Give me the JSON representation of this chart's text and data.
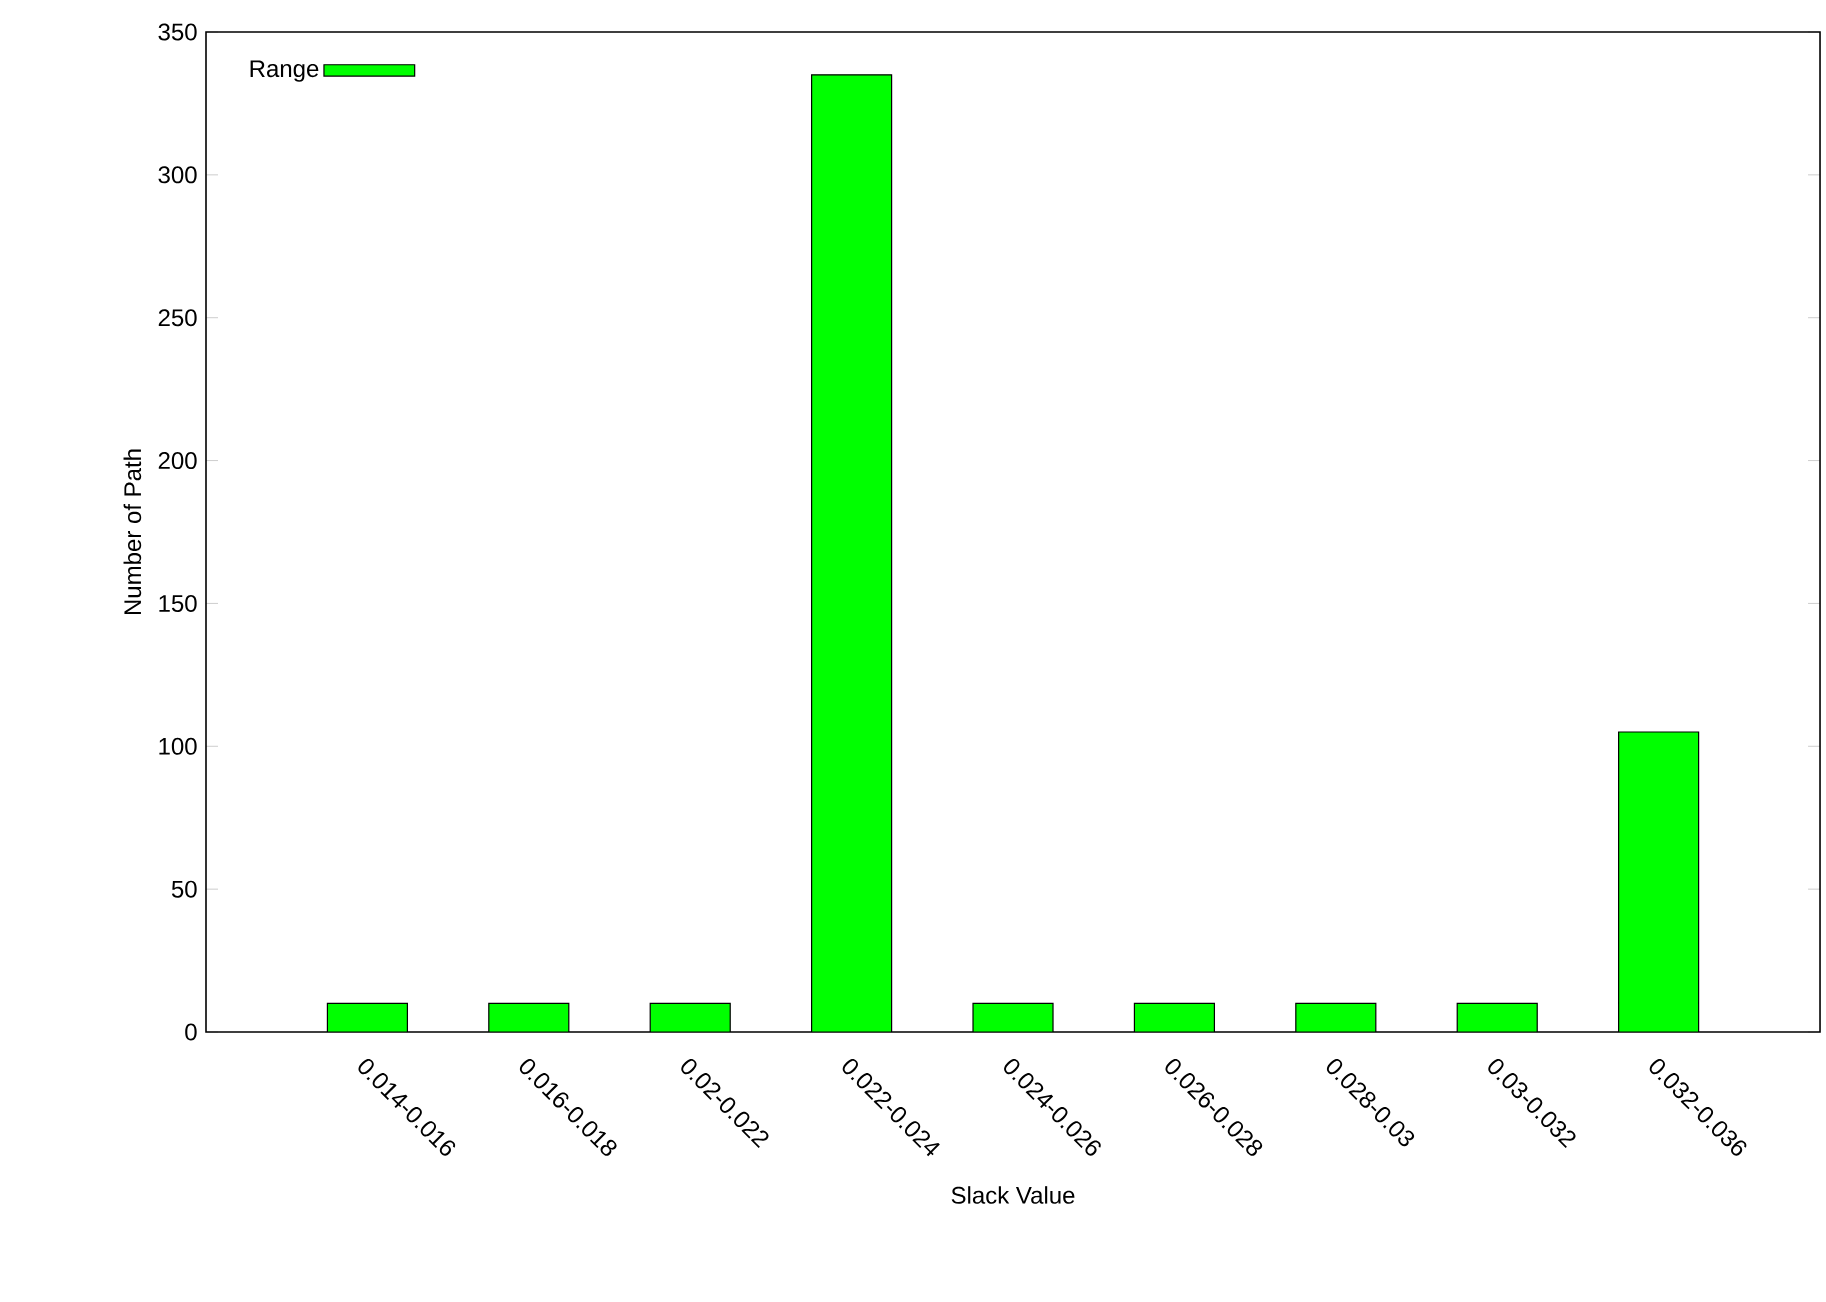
{
  "chart_data": {
    "type": "bar",
    "xlabel": "Slack Value",
    "ylabel": "Number of Path",
    "categories": [
      "0.014-0.016",
      "0.016-0.018",
      "0.02-0.022",
      "0.022-0.024",
      "0.024-0.026",
      "0.026-0.028",
      "0.028-0.03",
      "0.03-0.032",
      "0.032-0.036"
    ],
    "series": [
      {
        "name": "Range",
        "color": "#00ff00",
        "values": [
          10,
          10,
          10,
          335,
          10,
          10,
          10,
          10,
          105
        ]
      }
    ],
    "ylim": [
      0,
      350
    ],
    "yticks": [
      0,
      50,
      100,
      150,
      200,
      250,
      300,
      350
    ],
    "legend": "top left"
  }
}
